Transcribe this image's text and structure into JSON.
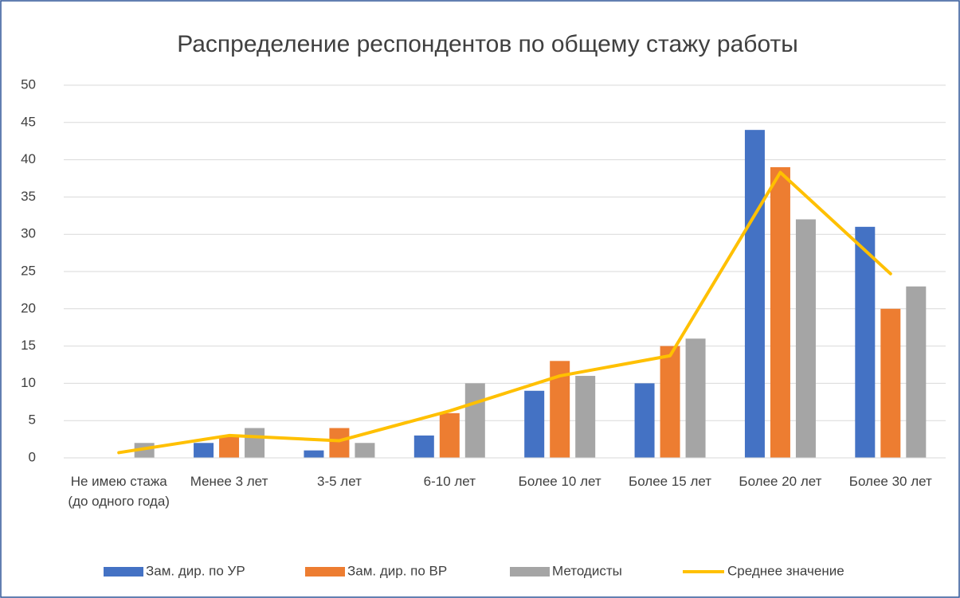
{
  "chart_data": {
    "type": "bar",
    "title": "Распределение респондентов по общему стажу работы",
    "categories": [
      "Не имею стажа (до одного года)",
      "Менее 3 лет",
      "3-5 лет",
      "6-10 лет",
      "Более 10 лет",
      "Более 15 лет",
      "Более 20 лет",
      "Более 30 лет"
    ],
    "series": [
      {
        "name": "Зам. дир. по УР",
        "color": "#4472c4",
        "type": "bar",
        "values": [
          0,
          2,
          1,
          3,
          9,
          10,
          44,
          31
        ]
      },
      {
        "name": "Зам. дир. по ВР",
        "color": "#ed7d31",
        "type": "bar",
        "values": [
          0,
          3,
          4,
          6,
          13,
          15,
          39,
          20
        ]
      },
      {
        "name": "Методисты",
        "color": "#a5a5a5",
        "type": "bar",
        "values": [
          2,
          4,
          2,
          10,
          11,
          16,
          32,
          23
        ]
      },
      {
        "name": "Среднее значение",
        "color": "#ffc000",
        "type": "line",
        "values": [
          0.7,
          3,
          2.3,
          6.3,
          11,
          13.7,
          38.3,
          24.7
        ]
      }
    ],
    "ylim": [
      0,
      50
    ],
    "yticks": [
      0,
      5,
      10,
      15,
      20,
      25,
      30,
      35,
      40,
      45,
      50
    ],
    "grid": true,
    "legend": "bottom"
  }
}
